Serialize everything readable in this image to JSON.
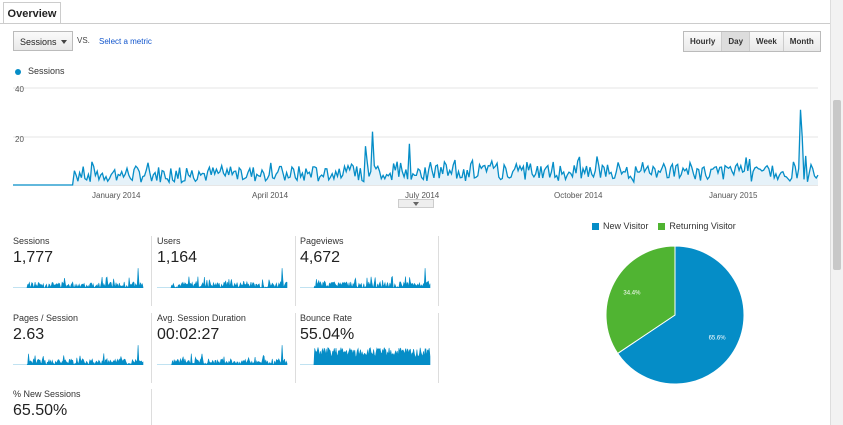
{
  "tab": {
    "label": "Overview"
  },
  "controls": {
    "metric_select": "Sessions",
    "vs_label": "VS.",
    "select_metric": "Select a metric",
    "periods": [
      {
        "label": "Hourly",
        "selected": false
      },
      {
        "label": "Day",
        "selected": true
      },
      {
        "label": "Week",
        "selected": false
      },
      {
        "label": "Month",
        "selected": false
      }
    ]
  },
  "main_chart": {
    "legend": "Sessions",
    "y_ticks": [
      "40",
      "20"
    ],
    "x_labels": [
      "January 2014",
      "April 2014",
      "July 2014",
      "October 2014",
      "January 2015"
    ]
  },
  "chart_data": [
    {
      "type": "area",
      "series": [
        {
          "name": "Sessions",
          "color": "#058dc7"
        }
      ],
      "ylim": [
        0,
        40
      ],
      "y_ticks": [
        20,
        40
      ],
      "x_ticks": [
        "January 2014",
        "April 2014",
        "July 2014",
        "October 2014",
        "January 2015"
      ],
      "x_range": [
        "2013-11",
        "2015-03"
      ],
      "notes_peaks": [
        {
          "x": "2014-06",
          "y": 22
        },
        {
          "x": "2015-03",
          "y": 31
        }
      ],
      "grid": true,
      "legend_position": "top-left"
    },
    {
      "type": "pie",
      "categories": [
        "New Visitor",
        "Returning Visitor"
      ],
      "values": [
        65.6,
        34.4
      ],
      "colors": [
        "#058dc7",
        "#50b432"
      ],
      "labels": [
        "65.6%",
        "34.4%"
      ],
      "legend_position": "top"
    }
  ],
  "metrics": [
    {
      "label": "Sessions",
      "value": "1,777"
    },
    {
      "label": "Users",
      "value": "1,164"
    },
    {
      "label": "Pageviews",
      "value": "4,672"
    },
    {
      "label": "Pages / Session",
      "value": "2.63"
    },
    {
      "label": "Avg. Session Duration",
      "value": "00:02:27"
    },
    {
      "label": "Bounce Rate",
      "value": "55.04%"
    },
    {
      "label": "% New Sessions",
      "value": "65.50%"
    }
  ],
  "pie_legend": {
    "new": "New Visitor",
    "returning": "Returning Visitor"
  },
  "pie_labels": {
    "new": "65.6%",
    "returning": "34.4%"
  },
  "colors": {
    "accent": "#058dc7",
    "green": "#50b432"
  }
}
